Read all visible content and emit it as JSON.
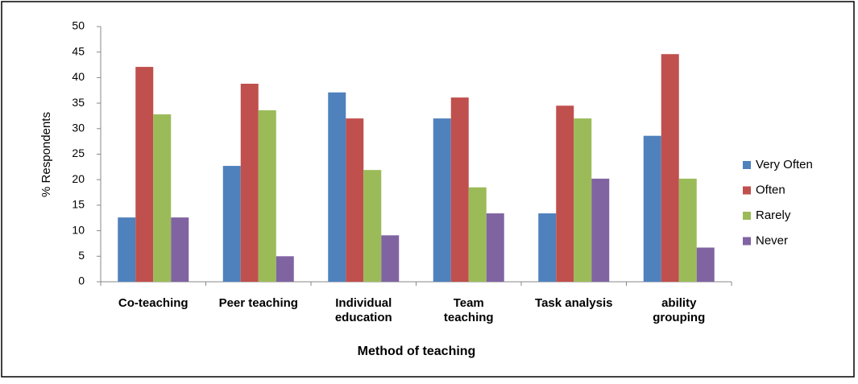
{
  "chart_data": {
    "type": "bar",
    "x_label": "Method of teaching",
    "y_label": "% Respondents",
    "categories": [
      "Co-teaching",
      "Peer teaching",
      "Individual\neducation",
      "Team\nteaching",
      "Task analysis",
      "ability\ngrouping"
    ],
    "series": [
      {
        "name": "Very Often",
        "color": "#4f81bd",
        "values": [
          12.6,
          22.7,
          37.1,
          32.0,
          13.4,
          28.6
        ]
      },
      {
        "name": "Often",
        "color": "#c0504d",
        "values": [
          42.1,
          38.8,
          32.0,
          36.1,
          34.5,
          44.6
        ]
      },
      {
        "name": "Rarely",
        "color": "#9bbb59",
        "values": [
          32.8,
          33.6,
          21.9,
          18.5,
          32.0,
          20.2
        ]
      },
      {
        "name": "Never",
        "color": "#8064a2",
        "values": [
          12.6,
          5.0,
          9.1,
          13.4,
          20.2,
          6.7
        ]
      }
    ],
    "ylim": [
      0,
      50
    ],
    "yticks": [
      0,
      5,
      10,
      15,
      20,
      25,
      30,
      35,
      40,
      45,
      50
    ],
    "grid": false,
    "legend": "right"
  }
}
